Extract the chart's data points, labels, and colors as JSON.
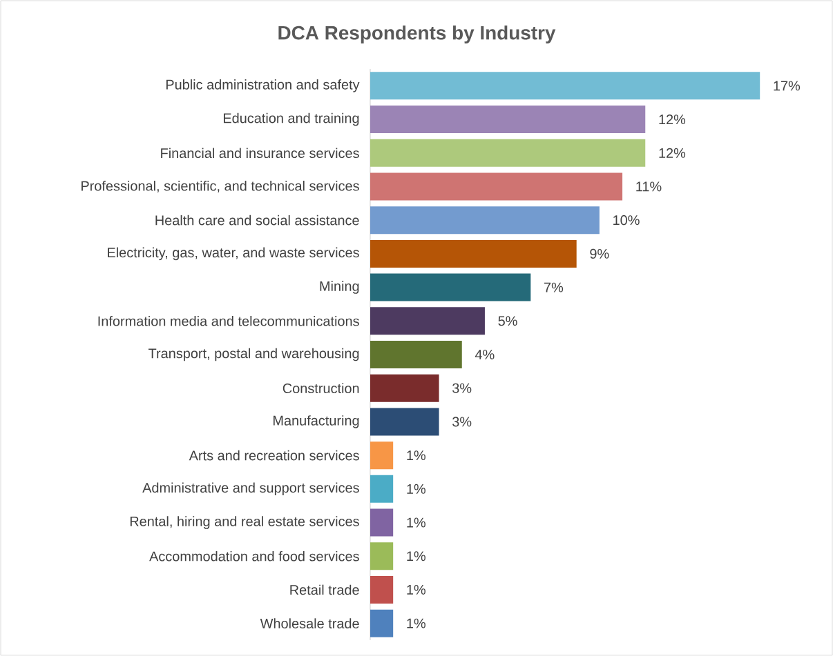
{
  "chart_data": {
    "type": "bar",
    "orientation": "horizontal",
    "title": "DCA Respondents by Industry",
    "categories": [
      "Public administration and safety",
      "Education and training",
      "Financial and insurance services",
      "Professional, scientific, and technical services",
      "Health care and social assistance",
      "Electricity, gas, water, and waste services",
      "Mining",
      "Information media and telecommunications",
      "Transport, postal and warehousing",
      "Construction",
      "Manufacturing",
      "Arts and recreation services",
      "Administrative and support services",
      "Rental, hiring and real estate services",
      "Accommodation and food services",
      "Retail trade",
      "Wholesale trade"
    ],
    "values": [
      17,
      12,
      12,
      11,
      10,
      9,
      7,
      5,
      4,
      3,
      3,
      1,
      1,
      1,
      1,
      1,
      1
    ],
    "value_labels": [
      "17%",
      "12%",
      "12%",
      "11%",
      "10%",
      "9%",
      "7%",
      "5%",
      "4%",
      "3%",
      "3%",
      "1%",
      "1%",
      "1%",
      "1%",
      "1%",
      "1%"
    ],
    "colors": [
      "#72bcd4",
      "#9b84b5",
      "#adc97c",
      "#cf7472",
      "#739bcf",
      "#b55506",
      "#256a79",
      "#4d3a60",
      "#60752e",
      "#7a2c2c",
      "#2c4d75",
      "#f79646",
      "#4bacc6",
      "#8064a2",
      "#9bbb59",
      "#c0504d",
      "#4f81bd"
    ]
  }
}
